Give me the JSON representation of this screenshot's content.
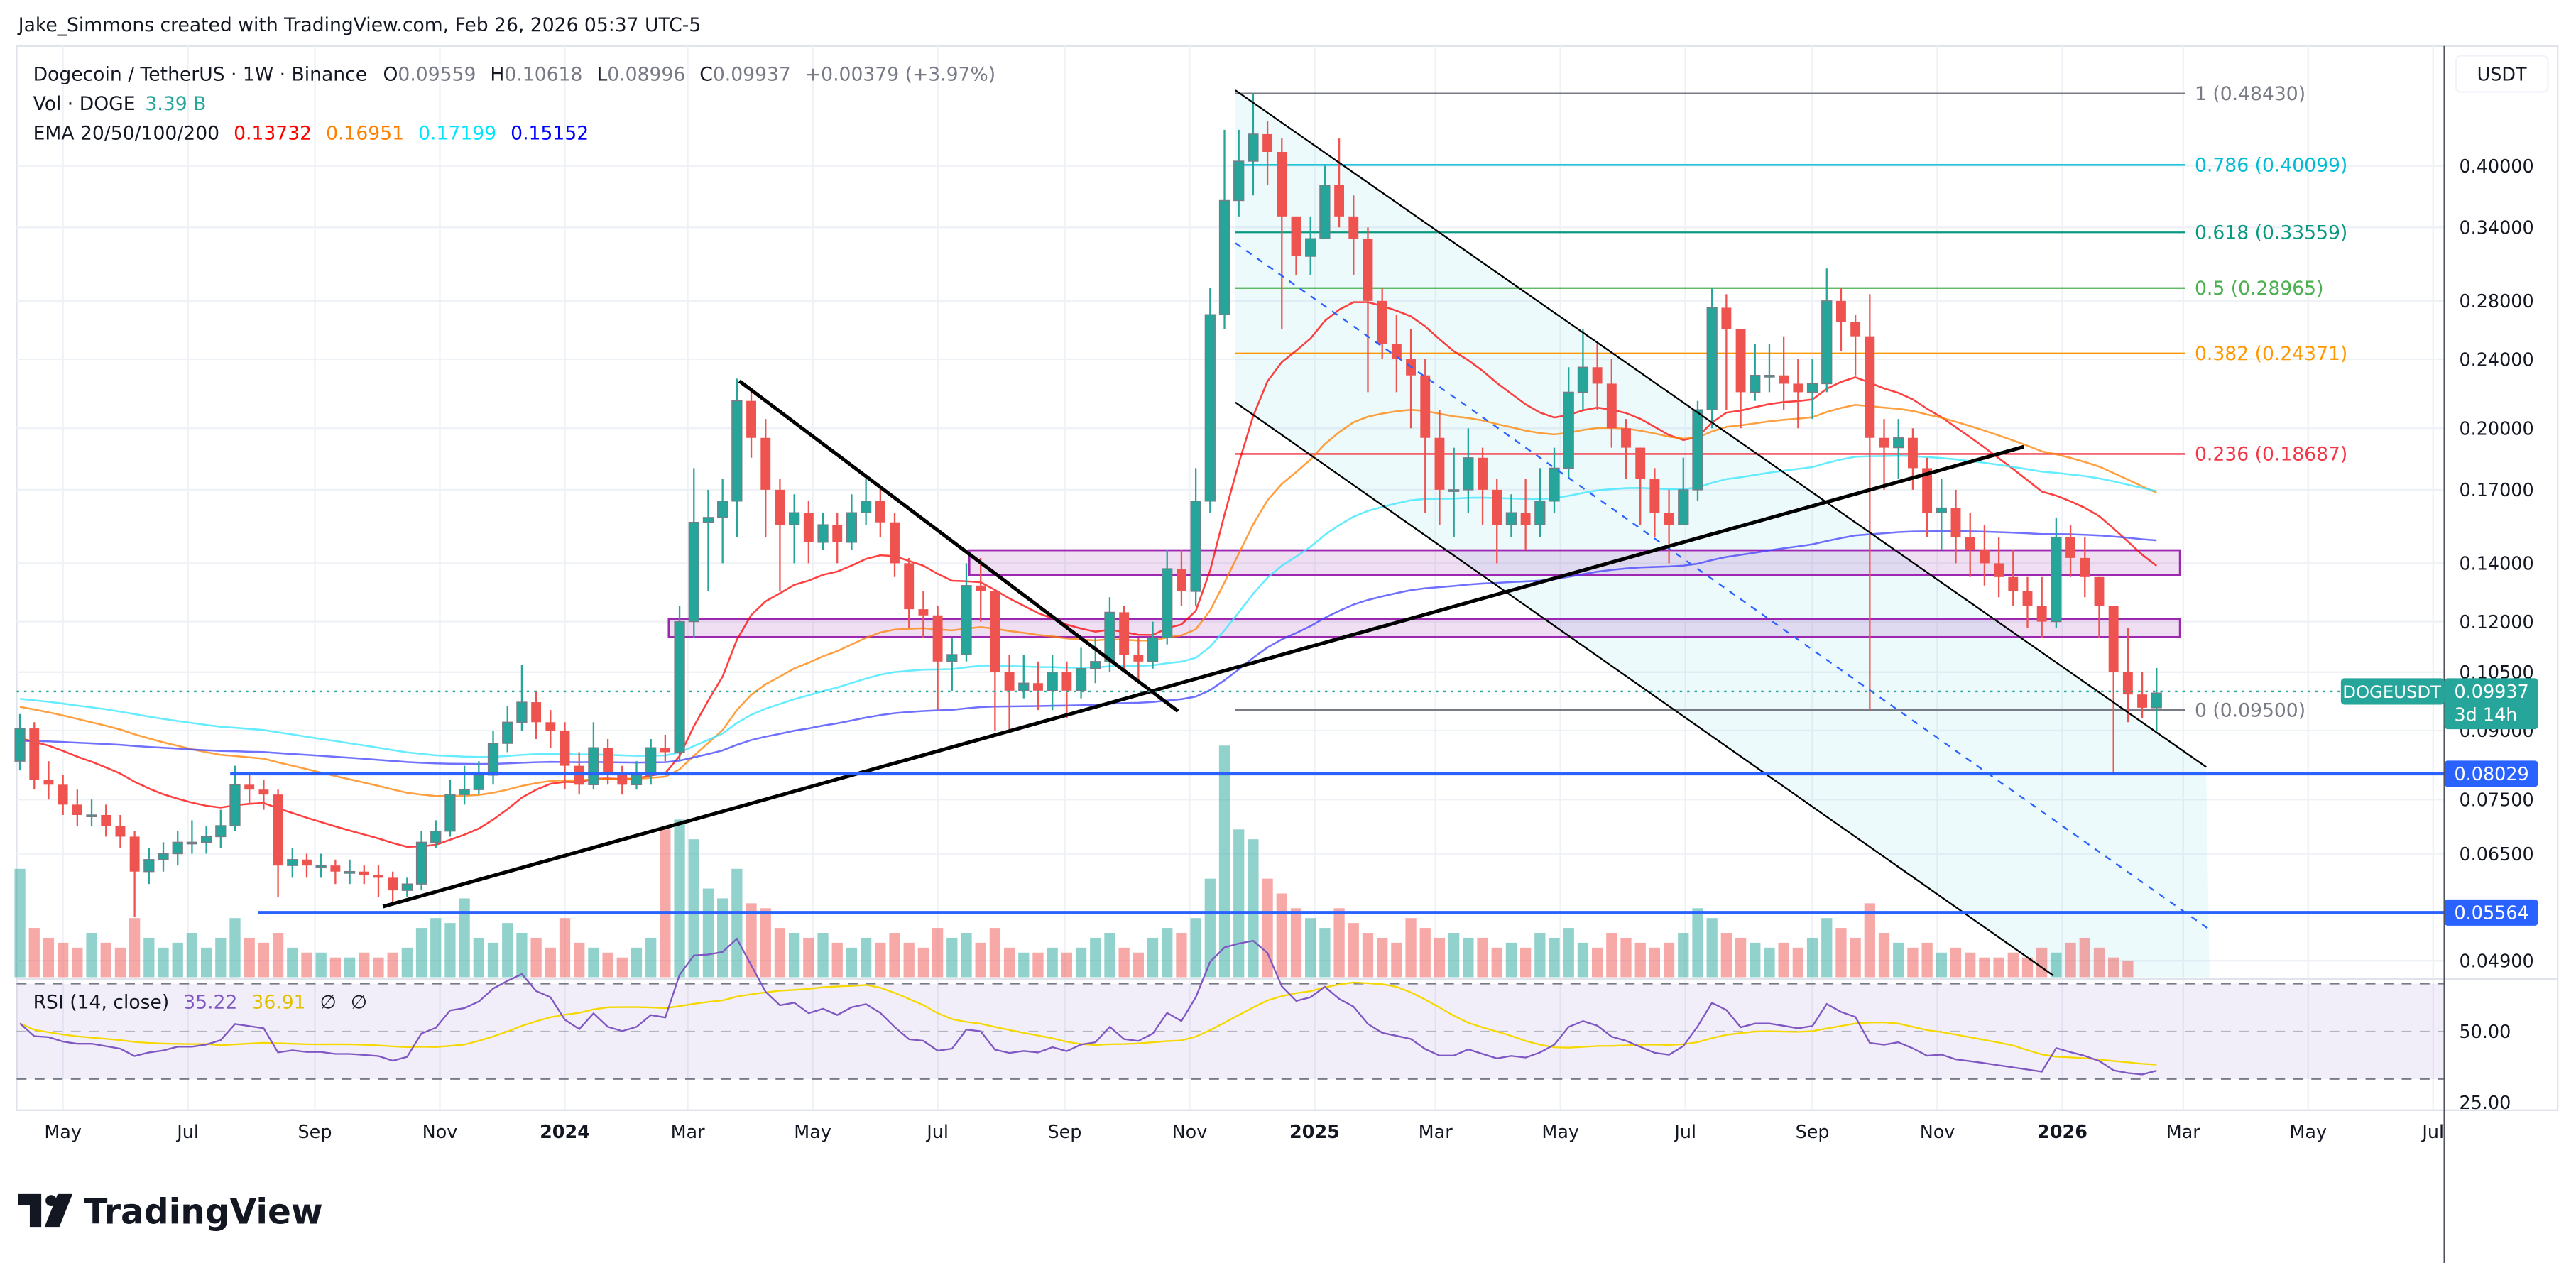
{
  "caption": "Jake_Simmons created with TradingView.com, Feb 26, 2026 05:37 UTC-5",
  "legend": {
    "symbol": "Dogecoin / TetherUS · 1W · Binance",
    "o_label": "O",
    "o": "0.09559",
    "h_label": "H",
    "h": "0.10618",
    "l_label": "L",
    "l": "0.08996",
    "c_label": "C",
    "c": "0.09937",
    "change": "+0.00379 (+3.97%)",
    "vol_label": "Vol · DOGE",
    "vol": "3.39 B",
    "ema_label": "EMA 20/50/100/200",
    "ema20": "0.13732",
    "ema50": "0.16951",
    "ema100": "0.17199",
    "ema200": "0.15152",
    "rsi_label": "RSI (14, close)",
    "rsi": "35.22",
    "rsi_ma": "36.91",
    "rsi_na1": "∅",
    "rsi_na2": "∅"
  },
  "colors": {
    "up": "#26a69a",
    "down": "#ef5350",
    "ema20": "#ff0000",
    "ema50": "#ff8000",
    "ema100": "#00ffff",
    "ema200": "#0000ff",
    "rsi": "#7e57c2",
    "rsi_ma": "#f5d800",
    "hline": "#2962ff",
    "zone": "#9c27b0"
  },
  "currency": "USDT",
  "price_axis": [
    "0.40000",
    "0.34000",
    "0.28000",
    "0.24000",
    "0.20000",
    "0.17000",
    "0.14000",
    "0.12000",
    "0.10500",
    "0.09000",
    "0.07500",
    "0.06500",
    "0.04900"
  ],
  "rsi_axis": [
    "50.00",
    "25.00"
  ],
  "time_axis": [
    {
      "label": "May",
      "date": "2023-05-01"
    },
    {
      "label": "Jul",
      "date": "2023-07-01"
    },
    {
      "label": "Sep",
      "date": "2023-09-01"
    },
    {
      "label": "Nov",
      "date": "2023-11-01"
    },
    {
      "label": "2024",
      "date": "2024-01-01"
    },
    {
      "label": "Mar",
      "date": "2024-03-01"
    },
    {
      "label": "May",
      "date": "2024-05-01"
    },
    {
      "label": "Jul",
      "date": "2024-07-01"
    },
    {
      "label": "Sep",
      "date": "2024-09-01"
    },
    {
      "label": "Nov",
      "date": "2024-11-01"
    },
    {
      "label": "2025",
      "date": "2025-01-01"
    },
    {
      "label": "Mar",
      "date": "2025-03-01"
    },
    {
      "label": "May",
      "date": "2025-05-01"
    },
    {
      "label": "Jul",
      "date": "2025-07-01"
    },
    {
      "label": "Sep",
      "date": "2025-09-01"
    },
    {
      "label": "Nov",
      "date": "2025-11-01"
    },
    {
      "label": "2026",
      "date": "2026-01-01"
    },
    {
      "label": "Mar",
      "date": "2026-03-01"
    },
    {
      "label": "May",
      "date": "2026-05-01"
    },
    {
      "label": "Jul",
      "date": "2026-07-01"
    }
  ],
  "last_price": {
    "symbol": "DOGEUSDT",
    "value": "0.09937",
    "countdown": "3d 14h"
  },
  "hlines": [
    {
      "price": 0.08029,
      "label": "0.08029"
    },
    {
      "price": 0.05564,
      "label": "0.05564"
    }
  ],
  "zones": [
    {
      "low": 0.1152,
      "high": 0.1209
    },
    {
      "low": 0.1358,
      "high": 0.1449
    }
  ],
  "fib": [
    {
      "ratio": "1",
      "price": 0.4843,
      "label": "1 (0.48430)",
      "color": "#787b86"
    },
    {
      "ratio": "0.786",
      "price": 0.40099,
      "label": "0.786 (0.40099)",
      "color": "#00bcd4"
    },
    {
      "ratio": "0.618",
      "price": 0.33559,
      "label": "0.618 (0.33559)",
      "color": "#089981"
    },
    {
      "ratio": "0.5",
      "price": 0.28965,
      "label": "0.5 (0.28965)",
      "color": "#4caf50"
    },
    {
      "ratio": "0.382",
      "price": 0.24371,
      "label": "0.382 (0.24371)",
      "color": "#ff9800"
    },
    {
      "ratio": "0.236",
      "price": 0.18687,
      "label": "0.236 (0.18687)",
      "color": "#f23645"
    },
    {
      "ratio": "0",
      "price": 0.095,
      "label": "0 (0.09500)",
      "color": "#787b86"
    }
  ],
  "brand": "TradingView",
  "chart_data": {
    "type": "candlestick",
    "interval": "1W",
    "start": "2023-04-10",
    "scale": "log",
    "first_open": 0.083,
    "close": [
      0.0905,
      0.079,
      0.078,
      0.074,
      0.072,
      0.072,
      0.07,
      0.068,
      0.062,
      0.064,
      0.065,
      0.067,
      0.067,
      0.068,
      0.07,
      0.078,
      0.077,
      0.076,
      0.063,
      0.064,
      0.063,
      0.063,
      0.062,
      0.062,
      0.0615,
      0.061,
      0.059,
      0.06,
      0.067,
      0.069,
      0.076,
      0.077,
      0.08,
      0.087,
      0.092,
      0.097,
      0.092,
      0.09,
      0.082,
      0.078,
      0.086,
      0.08,
      0.078,
      0.08,
      0.086,
      0.085,
      0.12,
      0.156,
      0.158,
      0.165,
      0.215,
      0.195,
      0.17,
      0.155,
      0.16,
      0.148,
      0.155,
      0.148,
      0.16,
      0.165,
      0.156,
      0.14,
      0.124,
      0.122,
      0.108,
      0.11,
      0.132,
      0.13,
      0.105,
      0.1,
      0.102,
      0.1,
      0.105,
      0.1,
      0.106,
      0.108,
      0.123,
      0.11,
      0.108,
      0.115,
      0.138,
      0.13,
      0.165,
      0.27,
      0.365,
      0.405,
      0.435,
      0.415,
      0.35,
      0.315,
      0.33,
      0.38,
      0.35,
      0.33,
      0.28,
      0.25,
      0.24,
      0.23,
      0.195,
      0.17,
      0.17,
      0.185,
      0.17,
      0.155,
      0.16,
      0.155,
      0.165,
      0.18,
      0.22,
      0.235,
      0.225,
      0.2,
      0.19,
      0.175,
      0.16,
      0.155,
      0.17,
      0.21,
      0.275,
      0.26,
      0.22,
      0.23,
      0.23,
      0.225,
      0.22,
      0.225,
      0.28,
      0.265,
      0.255,
      0.195,
      0.19,
      0.195,
      0.18,
      0.16,
      0.162,
      0.15,
      0.145,
      0.14,
      0.135,
      0.13,
      0.125,
      0.12,
      0.15,
      0.142,
      0.135,
      0.125,
      0.105,
      0.099,
      0.09559,
      0.09937
    ],
    "high": [
      0.094,
      0.092,
      0.083,
      0.08,
      0.077,
      0.075,
      0.074,
      0.072,
      0.069,
      0.066,
      0.067,
      0.069,
      0.071,
      0.07,
      0.073,
      0.082,
      0.08,
      0.079,
      0.077,
      0.066,
      0.065,
      0.065,
      0.064,
      0.064,
      0.063,
      0.063,
      0.062,
      0.061,
      0.069,
      0.071,
      0.079,
      0.082,
      0.083,
      0.09,
      0.096,
      0.107,
      0.1,
      0.095,
      0.092,
      0.085,
      0.092,
      0.088,
      0.082,
      0.083,
      0.088,
      0.089,
      0.125,
      0.18,
      0.17,
      0.175,
      0.228,
      0.222,
      0.205,
      0.175,
      0.168,
      0.165,
      0.16,
      0.16,
      0.168,
      0.175,
      0.172,
      0.16,
      0.142,
      0.13,
      0.125,
      0.115,
      0.14,
      0.142,
      0.13,
      0.11,
      0.11,
      0.108,
      0.11,
      0.108,
      0.112,
      0.115,
      0.128,
      0.125,
      0.115,
      0.12,
      0.145,
      0.145,
      0.18,
      0.29,
      0.44,
      0.44,
      0.4843,
      0.45,
      0.43,
      0.35,
      0.35,
      0.4,
      0.43,
      0.37,
      0.34,
      0.29,
      0.27,
      0.26,
      0.24,
      0.21,
      0.19,
      0.2,
      0.19,
      0.175,
      0.168,
      0.175,
      0.18,
      0.19,
      0.235,
      0.26,
      0.25,
      0.24,
      0.205,
      0.19,
      0.18,
      0.17,
      0.185,
      0.215,
      0.29,
      0.285,
      0.245,
      0.25,
      0.25,
      0.255,
      0.24,
      0.24,
      0.305,
      0.29,
      0.27,
      0.285,
      0.205,
      0.205,
      0.2,
      0.185,
      0.175,
      0.17,
      0.16,
      0.155,
      0.15,
      0.145,
      0.135,
      0.135,
      0.158,
      0.155,
      0.15,
      0.135,
      0.125,
      0.118,
      0.105,
      0.10618
    ],
    "low": [
      0.081,
      0.077,
      0.075,
      0.072,
      0.07,
      0.07,
      0.068,
      0.066,
      0.055,
      0.06,
      0.062,
      0.063,
      0.065,
      0.065,
      0.066,
      0.069,
      0.074,
      0.073,
      0.058,
      0.061,
      0.061,
      0.061,
      0.06,
      0.06,
      0.06,
      0.058,
      0.057,
      0.058,
      0.059,
      0.066,
      0.068,
      0.074,
      0.076,
      0.078,
      0.085,
      0.09,
      0.088,
      0.086,
      0.077,
      0.076,
      0.077,
      0.078,
      0.076,
      0.077,
      0.078,
      0.083,
      0.083,
      0.115,
      0.13,
      0.14,
      0.15,
      0.185,
      0.15,
      0.13,
      0.14,
      0.14,
      0.145,
      0.14,
      0.145,
      0.155,
      0.15,
      0.135,
      0.118,
      0.115,
      0.095,
      0.1,
      0.108,
      0.12,
      0.09,
      0.09,
      0.098,
      0.095,
      0.095,
      0.093,
      0.098,
      0.102,
      0.105,
      0.105,
      0.103,
      0.106,
      0.113,
      0.125,
      0.125,
      0.16,
      0.26,
      0.35,
      0.37,
      0.38,
      0.26,
      0.3,
      0.3,
      0.33,
      0.34,
      0.3,
      0.22,
      0.24,
      0.22,
      0.2,
      0.16,
      0.155,
      0.15,
      0.16,
      0.155,
      0.14,
      0.15,
      0.145,
      0.15,
      0.16,
      0.175,
      0.21,
      0.21,
      0.19,
      0.175,
      0.155,
      0.15,
      0.14,
      0.155,
      0.165,
      0.2,
      0.21,
      0.2,
      0.215,
      0.22,
      0.21,
      0.2,
      0.205,
      0.22,
      0.245,
      0.23,
      0.095,
      0.17,
      0.175,
      0.17,
      0.15,
      0.145,
      0.14,
      0.135,
      0.132,
      0.128,
      0.125,
      0.118,
      0.115,
      0.118,
      0.135,
      0.128,
      0.115,
      0.08,
      0.092,
      0.093,
      0.08996
    ],
    "volume_b": [
      22,
      10,
      8,
      7,
      6,
      9,
      7,
      6,
      12,
      8,
      6,
      7,
      9,
      6,
      8,
      12,
      8,
      7,
      9,
      6,
      5,
      5,
      4,
      4,
      5,
      4,
      5,
      6,
      10,
      12,
      11,
      16,
      8,
      7,
      11,
      9,
      8,
      6,
      12,
      7,
      6,
      5,
      4,
      6,
      8,
      30,
      32,
      28,
      18,
      16,
      22,
      15,
      14,
      10,
      9,
      8,
      9,
      7,
      6,
      8,
      7,
      9,
      7,
      6,
      10,
      8,
      9,
      7,
      10,
      6,
      5,
      5,
      6,
      5,
      6,
      8,
      9,
      6,
      5,
      8,
      10,
      9,
      12,
      20,
      47,
      30,
      28,
      20,
      17,
      14,
      12,
      10,
      14,
      11,
      9,
      8,
      7,
      12,
      10,
      8,
      9,
      8,
      8,
      6,
      7,
      6,
      9,
      8,
      10,
      7,
      6,
      9,
      8,
      7,
      6,
      7,
      9,
      14,
      12,
      9,
      8,
      7,
      6,
      7,
      6,
      8,
      12,
      10,
      8,
      15,
      9,
      7,
      6,
      7,
      5,
      6,
      5,
      4,
      4,
      5,
      4,
      6,
      5,
      7,
      8,
      6,
      4,
      3.39
    ]
  }
}
